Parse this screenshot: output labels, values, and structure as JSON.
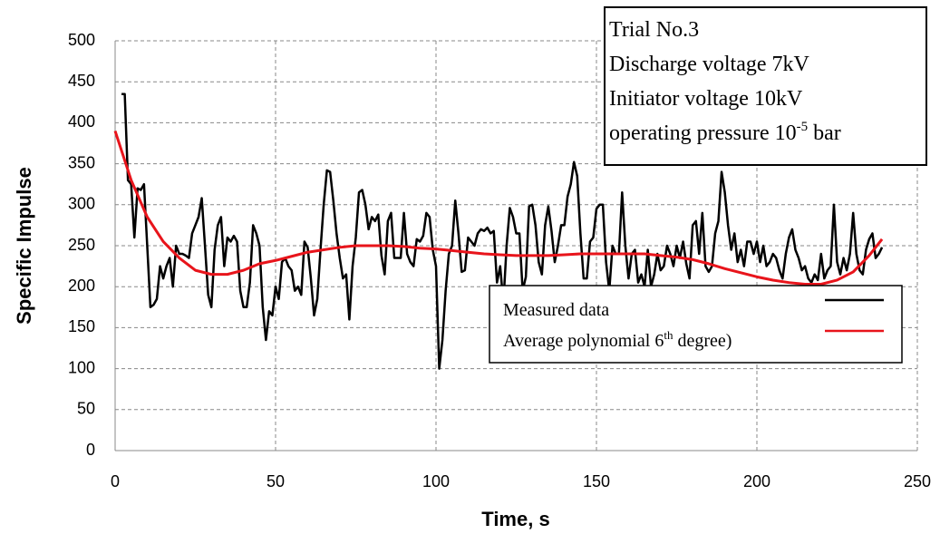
{
  "chart_data": {
    "type": "line",
    "x_label": "Time, s",
    "y_label": "Specific Impulse",
    "xlim": [
      0,
      250
    ],
    "xticks": [
      0,
      50,
      100,
      150,
      200,
      250
    ],
    "ylim": [
      0,
      500
    ],
    "yticks": [
      0,
      50,
      100,
      150,
      200,
      250,
      300,
      350,
      400,
      450,
      500
    ],
    "grid": true,
    "annotation": [
      {
        "text": "Trial No.3"
      },
      {
        "text": "Discharge voltage 7kV"
      },
      {
        "text": "Initiator voltage 10kV"
      },
      {
        "text": "operating pressure 10",
        "sup": "-5",
        "after": " bar"
      }
    ],
    "series": [
      {
        "name": "Measured data",
        "color": "#000000",
        "x": [
          2,
          3,
          4,
          5,
          6,
          7,
          8,
          9,
          10,
          11,
          12,
          13,
          14,
          15,
          16,
          17,
          18,
          19,
          20,
          21,
          22,
          23,
          24,
          25,
          26,
          27,
          28,
          29,
          30,
          31,
          32,
          33,
          34,
          35,
          36,
          37,
          38,
          39,
          40,
          41,
          42,
          43,
          44,
          45,
          46,
          47,
          48,
          49,
          50,
          51,
          52,
          53,
          54,
          55,
          56,
          57,
          58,
          59,
          60,
          61,
          62,
          63,
          64,
          65,
          66,
          67,
          68,
          69,
          70,
          71,
          72,
          73,
          74,
          75,
          76,
          77,
          78,
          79,
          80,
          81,
          82,
          83,
          84,
          85,
          86,
          87,
          88,
          89,
          90,
          91,
          92,
          93,
          94,
          95,
          96,
          97,
          98,
          99,
          100,
          101,
          102,
          103,
          104,
          105,
          106,
          107,
          108,
          109,
          110,
          111,
          112,
          113,
          114,
          115,
          116,
          117,
          118,
          119,
          120,
          121,
          122,
          123,
          124,
          125,
          126,
          127,
          128,
          129,
          130,
          131,
          132,
          133,
          134,
          135,
          136,
          137,
          138,
          139,
          140,
          141,
          142,
          143,
          144,
          145,
          146,
          147,
          148,
          149,
          150,
          151,
          152,
          153,
          154,
          155,
          156,
          157,
          158,
          159,
          160,
          161,
          162,
          163,
          164,
          165,
          166,
          167,
          168,
          169,
          170,
          171,
          172,
          173,
          174,
          175,
          176,
          177,
          178,
          179,
          180,
          181,
          182,
          183,
          184,
          185,
          186,
          187,
          188,
          189,
          190,
          191,
          192,
          193,
          194,
          195,
          196,
          197,
          198,
          199,
          200,
          201,
          202,
          203,
          204,
          205,
          206,
          207,
          208,
          209,
          210,
          211,
          212,
          213,
          214,
          215,
          216,
          217,
          218,
          219,
          220,
          221,
          222,
          223,
          224,
          225,
          226,
          227,
          228,
          229,
          230,
          231,
          232,
          233,
          234,
          235,
          236,
          237,
          238,
          239
        ],
        "values": [
          435,
          435,
          330,
          325,
          260,
          320,
          318,
          325,
          250,
          175,
          178,
          185,
          225,
          210,
          225,
          235,
          200,
          250,
          240,
          240,
          238,
          235,
          265,
          275,
          285,
          308,
          250,
          190,
          175,
          245,
          275,
          285,
          225,
          260,
          255,
          262,
          255,
          195,
          175,
          175,
          205,
          275,
          265,
          250,
          175,
          135,
          170,
          165,
          200,
          185,
          230,
          235,
          225,
          220,
          195,
          200,
          190,
          255,
          248,
          210,
          165,
          185,
          245,
          300,
          342,
          340,
          305,
          265,
          235,
          210,
          215,
          160,
          225,
          260,
          315,
          318,
          300,
          270,
          285,
          280,
          288,
          238,
          215,
          280,
          290,
          235,
          235,
          235,
          290,
          240,
          230,
          225,
          258,
          255,
          262,
          290,
          285,
          245,
          225,
          100,
          135,
          195,
          240,
          250,
          305,
          265,
          218,
          220,
          260,
          255,
          250,
          265,
          270,
          268,
          272,
          265,
          268,
          205,
          225,
          180,
          250,
          296,
          285,
          265,
          265,
          195,
          212,
          298,
          300,
          275,
          230,
          215,
          275,
          298,
          268,
          230,
          250,
          275,
          275,
          310,
          325,
          352,
          335,
          265,
          210,
          210,
          255,
          260,
          295,
          300,
          300,
          230,
          195,
          250,
          240,
          240,
          315,
          250,
          210,
          240,
          245,
          205,
          215,
          200,
          245,
          200,
          215,
          240,
          220,
          225,
          250,
          240,
          225,
          250,
          235,
          255,
          228,
          210,
          275,
          280,
          240,
          290,
          225,
          218,
          225,
          265,
          280,
          340,
          315,
          275,
          245,
          265,
          230,
          245,
          225,
          255,
          255,
          240,
          255,
          230,
          250,
          225,
          230,
          240,
          235,
          220,
          210,
          240,
          260,
          270,
          245,
          235,
          220,
          225,
          210,
          205,
          215,
          208,
          240,
          210,
          220,
          225,
          300,
          230,
          215,
          235,
          220,
          240,
          290,
          240,
          220,
          215,
          245,
          258,
          265,
          235,
          240,
          248
        ]
      },
      {
        "name": "Average polynomial 6",
        "name_sup": "th",
        "name_after": " degree)",
        "color": "#e8141b",
        "x": [
          0,
          5,
          10,
          15,
          20,
          25,
          30,
          35,
          40,
          45,
          50,
          55,
          60,
          65,
          70,
          75,
          80,
          85,
          90,
          95,
          100,
          105,
          110,
          115,
          120,
          125,
          130,
          135,
          140,
          145,
          150,
          155,
          160,
          165,
          170,
          175,
          180,
          185,
          190,
          195,
          200,
          205,
          210,
          215,
          220,
          225,
          230,
          235,
          239
        ],
        "values": [
          390,
          330,
          285,
          255,
          235,
          220,
          215,
          215,
          220,
          228,
          232,
          237,
          242,
          245,
          248,
          250,
          250,
          250,
          249,
          247,
          246,
          244,
          242,
          240,
          239,
          238,
          238,
          238,
          239,
          240,
          240,
          240,
          240,
          240,
          238,
          236,
          233,
          228,
          222,
          217,
          212,
          208,
          205,
          203,
          203,
          208,
          218,
          238,
          258
        ]
      }
    ]
  }
}
